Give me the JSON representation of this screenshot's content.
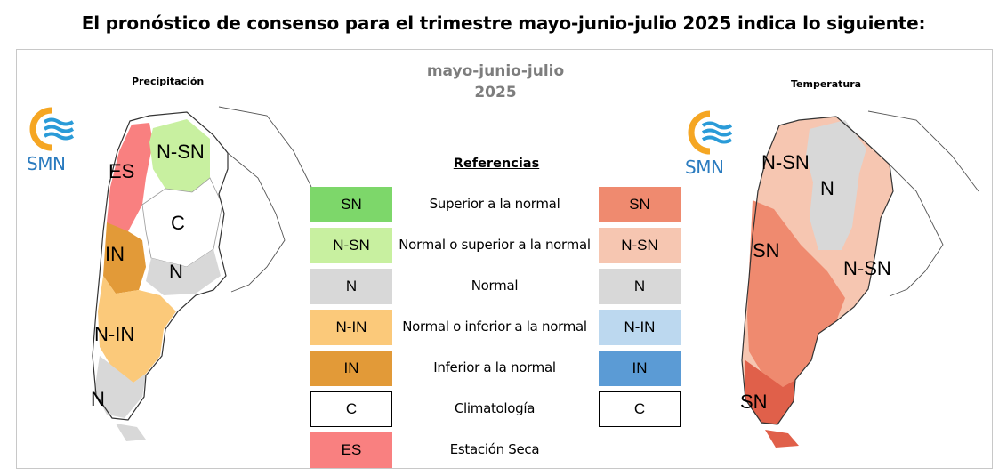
{
  "headline": "El pronóstico de consenso para el trimestre mayo-junio-julio 2025 indica lo siguiente:",
  "season": {
    "line1": "mayo-junio-julio",
    "line2": "2025"
  },
  "logo_text": "SMN",
  "precip_map": {
    "title": "Precipitación",
    "labels": [
      "N-SN",
      "ES",
      "C",
      "IN",
      "N",
      "N-IN",
      "N"
    ]
  },
  "temp_map": {
    "title": "Temperatura",
    "labels": [
      "N-SN",
      "N",
      "SN",
      "N-SN",
      "SN"
    ]
  },
  "references": {
    "title": "Referencias",
    "rows": [
      {
        "desc": "Superior a la normal",
        "left": {
          "code": "SN",
          "color": "#7dd76a"
        },
        "right": {
          "code": "SN",
          "color": "#ef8a6f"
        }
      },
      {
        "desc": "Normal o superior a la normal",
        "left": {
          "code": "N-SN",
          "color": "#c8f0a0"
        },
        "right": {
          "code": "N-SN",
          "color": "#f6c6b1"
        }
      },
      {
        "desc": "Normal",
        "left": {
          "code": "N",
          "color": "#d8d8d8"
        },
        "right": {
          "code": "N",
          "color": "#d8d8d8"
        }
      },
      {
        "desc": "Normal o inferior a la normal",
        "left": {
          "code": "N-IN",
          "color": "#fbc97a"
        },
        "right": {
          "code": "N-IN",
          "color": "#bcd8ef"
        }
      },
      {
        "desc": "Inferior a la normal",
        "left": {
          "code": "IN",
          "color": "#e29a38"
        },
        "right": {
          "code": "IN",
          "color": "#5b9bd5"
        }
      },
      {
        "desc": "Climatología",
        "left": {
          "code": "C",
          "color": "#ffffff"
        },
        "right": {
          "code": "C",
          "color": "#ffffff"
        }
      },
      {
        "desc": "Estación Seca",
        "left": {
          "code": "ES",
          "color": "#f98080"
        },
        "right": null
      }
    ]
  }
}
